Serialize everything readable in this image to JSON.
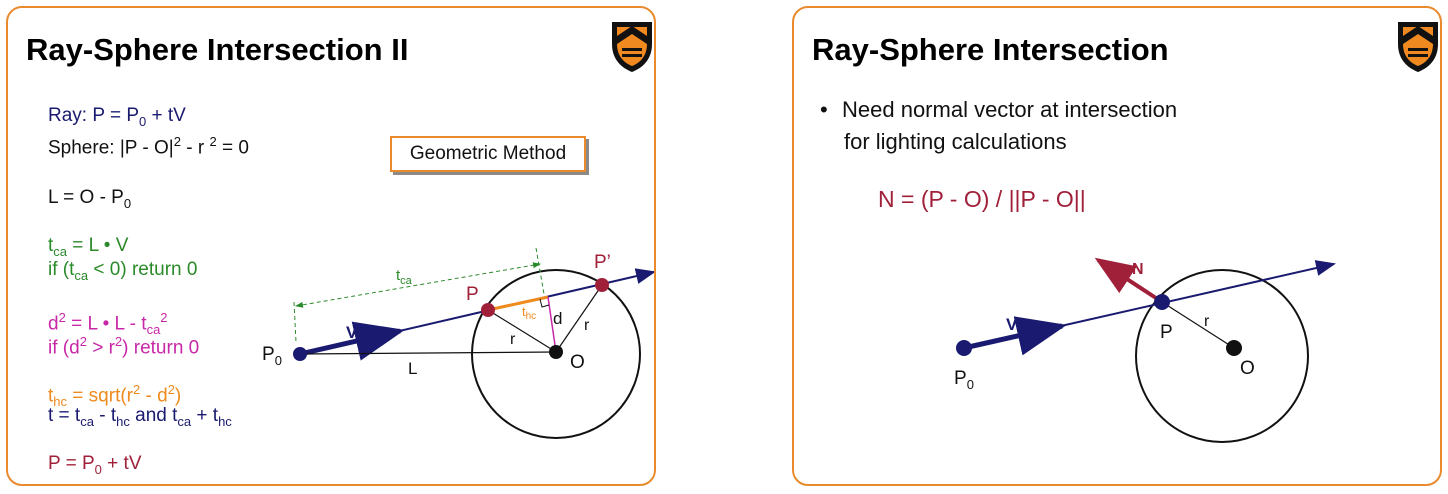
{
  "left": {
    "title": "Ray-Sphere Intersection II",
    "ray": {
      "label": "Ray: P = P",
      "sub0": "0",
      "rest": " + tV"
    },
    "sphere": {
      "label": "Sphere: |P - O|",
      "sup2": "2",
      "mid": " - r ",
      "sup2b": "2",
      "rest": " = 0"
    },
    "L": {
      "label": "L = O - P",
      "sub0": "0"
    },
    "tca_eq": {
      "t": "t",
      "sub": "ca",
      "rest": " = L • V"
    },
    "tca_check": {
      "a": "if (t",
      "sub": "ca",
      "b": " < 0) return 0"
    },
    "d2_eq": {
      "d": "d",
      "sup": "2",
      "mid": " = L • L - t",
      "sub": "ca",
      "sup2": "2"
    },
    "d2_check": {
      "a": "if (d",
      "sup": "2",
      "b": " > r",
      "sup2": "2",
      "c": ") return 0"
    },
    "thc_eq": {
      "t": "t",
      "sub": "hc",
      "rest": " = sqrt(r",
      "sup": "2",
      "mid": " - d",
      "sup2": "2",
      "end": ")"
    },
    "t_eq": {
      "a": "t = t",
      "sub1": "ca",
      "b": " - t",
      "sub2": "hc",
      "c": "  and t",
      "sub3": "ca",
      "d": " + t",
      "sub4": "hc"
    },
    "p_eq": {
      "a": "P = P",
      "sub": "0",
      "b": " + tV"
    },
    "method_box": "Geometric Method",
    "diagram": {
      "p0": "P",
      "p0_sub": "0",
      "v": "V",
      "l": "L",
      "tca": "t",
      "tca_sub": "ca",
      "thc": "t",
      "thc_sub": "hc",
      "p": "P",
      "pprime": "P’",
      "d": "d",
      "r1": "r",
      "r2": "r",
      "o": "O"
    }
  },
  "right": {
    "title": "Ray-Sphere Intersection",
    "bullet_line1": "Need normal vector at intersection",
    "bullet_line2": "for lighting calculations",
    "bullet_glyph": "•",
    "normal_eq": "N = (P - O) / ||P - O||",
    "diagram": {
      "n": "N",
      "v": "V",
      "p": "P",
      "r": "r",
      "o": "O",
      "p0": "P",
      "p0_sub": "0"
    }
  },
  "colors": {
    "border": "#e98a2c",
    "navy": "#1a1a70",
    "green": "#2a8a2a",
    "magenta": "#c828a8",
    "orange": "#ee8a1e",
    "maroon": "#a0203a"
  },
  "icons": [
    "princeton-shield-icon"
  ]
}
